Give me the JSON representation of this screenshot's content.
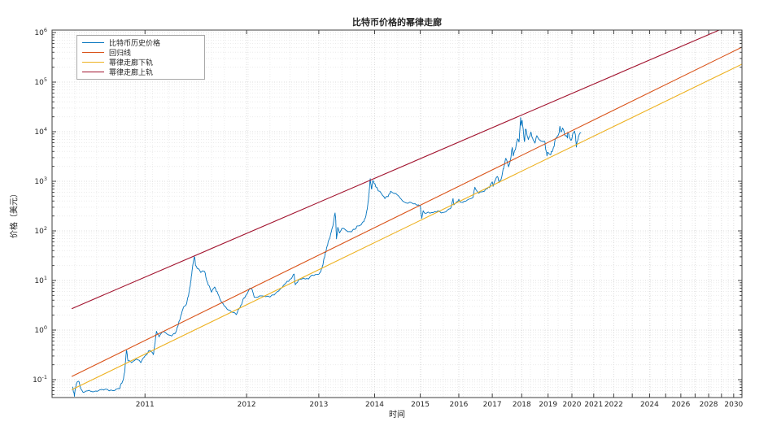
{
  "title": "比特币价格的幂律走廊",
  "axes": {
    "xlabel": "时间",
    "ylabel": "价格（美元）"
  },
  "legend": {
    "position": "top-left",
    "items": [
      {
        "label": "比特币历史价格",
        "color": "#0072BD"
      },
      {
        "label": "回归线",
        "color": "#D95319"
      },
      {
        "label": "幂律走廊下轨",
        "color": "#EDB120"
      },
      {
        "label": "幂律走廊上轨",
        "color": "#A2142F"
      }
    ]
  },
  "chart_data": {
    "type": "line",
    "title": "比特币价格的幂律走廊",
    "xlabel": "时间",
    "ylabel": "价格（美元）",
    "x_scale": "log10 of days since 2009-01-03",
    "y_scale": "log10",
    "x_range_days": [
      502,
      7926
    ],
    "y_range_usd": [
      0.0436,
      1120000
    ],
    "grid": "major and minor dotted gridlines, both axes",
    "legend_position": "top-left",
    "x_ticks": [
      {
        "year": 2011,
        "days": 728,
        "labeled": true
      },
      {
        "year": 2012,
        "days": 1093,
        "labeled": true
      },
      {
        "year": 2013,
        "days": 1459,
        "labeled": true
      },
      {
        "year": 2014,
        "days": 1824,
        "labeled": true
      },
      {
        "year": 2015,
        "days": 2189,
        "labeled": true
      },
      {
        "year": 2016,
        "days": 2554,
        "labeled": true
      },
      {
        "year": 2017,
        "days": 2920,
        "labeled": true
      },
      {
        "year": 2018,
        "days": 3285,
        "labeled": true
      },
      {
        "year": 2019,
        "days": 3650,
        "labeled": true
      },
      {
        "year": 2020,
        "days": 4015,
        "labeled": true
      },
      {
        "year": 2021,
        "days": 4381,
        "labeled": true
      },
      {
        "year": 2022,
        "days": 4746,
        "labeled": true
      },
      {
        "year": 2023,
        "days": 5111,
        "labeled": false
      },
      {
        "year": 2024,
        "days": 5477,
        "labeled": true
      },
      {
        "year": 2025,
        "days": 5842,
        "labeled": false
      },
      {
        "year": 2026,
        "days": 6207,
        "labeled": true
      },
      {
        "year": 2027,
        "days": 6572,
        "labeled": false
      },
      {
        "year": 2028,
        "days": 6938,
        "labeled": true
      },
      {
        "year": 2029,
        "days": 7303,
        "labeled": false
      },
      {
        "year": 2030,
        "days": 7668,
        "labeled": true
      }
    ],
    "y_tick_exponents": [
      -1,
      0,
      1,
      2,
      3,
      4,
      5,
      6
    ],
    "series": [
      {
        "name": "比特币历史价格",
        "color": "#0072BD",
        "kind": "price_history",
        "points_days_usd": [
          [
            545,
            0.072
          ],
          [
            549,
            0.046
          ],
          [
            553,
            0.081
          ],
          [
            558,
            0.093
          ],
          [
            563,
            0.066
          ],
          [
            571,
            0.056
          ],
          [
            582,
            0.061
          ],
          [
            597,
            0.059
          ],
          [
            617,
            0.062
          ],
          [
            640,
            0.06
          ],
          [
            658,
            0.066
          ],
          [
            666,
            0.095
          ],
          [
            671,
            0.14
          ],
          [
            676,
            0.39
          ],
          [
            680,
            0.24
          ],
          [
            690,
            0.22
          ],
          [
            703,
            0.26
          ],
          [
            716,
            0.22
          ],
          [
            728,
            0.3
          ],
          [
            742,
            0.39
          ],
          [
            753,
            0.32
          ],
          [
            762,
            0.95
          ],
          [
            770,
            0.73
          ],
          [
            781,
            0.92
          ],
          [
            795,
            0.83
          ],
          [
            810,
            0.76
          ],
          [
            822,
            0.86
          ],
          [
            836,
            1.55
          ],
          [
            849,
            2.9
          ],
          [
            860,
            3.4
          ],
          [
            872,
            7.5
          ],
          [
            880,
            17.5
          ],
          [
            887,
            30
          ],
          [
            891,
            20
          ],
          [
            897,
            17.5
          ],
          [
            910,
            14.5
          ],
          [
            922,
            15.5
          ],
          [
            935,
            9.2
          ],
          [
            950,
            5.8
          ],
          [
            962,
            7.4
          ],
          [
            978,
            4.9
          ],
          [
            995,
            3.4
          ],
          [
            1012,
            2.6
          ],
          [
            1030,
            2.3
          ],
          [
            1049,
            2.05
          ],
          [
            1065,
            2.9
          ],
          [
            1080,
            4.4
          ],
          [
            1093,
            5.2
          ],
          [
            1112,
            6.9
          ],
          [
            1127,
            4.6
          ],
          [
            1160,
            4.9
          ],
          [
            1190,
            4.85
          ],
          [
            1220,
            5.1
          ],
          [
            1248,
            6.5
          ],
          [
            1278,
            8.8
          ],
          [
            1308,
            11
          ],
          [
            1322,
            13.5
          ],
          [
            1328,
            8.2
          ],
          [
            1345,
            10.3
          ],
          [
            1372,
            11.2
          ],
          [
            1400,
            10.7
          ],
          [
            1430,
            12.6
          ],
          [
            1459,
            13.4
          ],
          [
            1475,
            17
          ],
          [
            1492,
            29
          ],
          [
            1505,
            45
          ],
          [
            1518,
            65
          ],
          [
            1532,
            92
          ],
          [
            1546,
            140
          ],
          [
            1557,
            230
          ],
          [
            1561,
            165
          ],
          [
            1566,
            69
          ],
          [
            1574,
            118
          ],
          [
            1585,
            91
          ],
          [
            1600,
            112
          ],
          [
            1625,
            104
          ],
          [
            1650,
            97
          ],
          [
            1675,
            108
          ],
          [
            1700,
            126
          ],
          [
            1728,
            133
          ],
          [
            1748,
            155
          ],
          [
            1762,
            205
          ],
          [
            1775,
            340
          ],
          [
            1784,
            580
          ],
          [
            1792,
            1130
          ],
          [
            1798,
            840
          ],
          [
            1803,
            700
          ],
          [
            1810,
            1020
          ],
          [
            1820,
            900
          ],
          [
            1832,
            770
          ],
          [
            1850,
            640
          ],
          [
            1875,
            560
          ],
          [
            1900,
            450
          ],
          [
            1925,
            490
          ],
          [
            1945,
            630
          ],
          [
            1960,
            590
          ],
          [
            1985,
            570
          ],
          [
            2010,
            500
          ],
          [
            2040,
            400
          ],
          [
            2070,
            365
          ],
          [
            2100,
            380
          ],
          [
            2130,
            350
          ],
          [
            2160,
            330
          ],
          [
            2189,
            315
          ],
          [
            2202,
            178
          ],
          [
            2215,
            255
          ],
          [
            2235,
            225
          ],
          [
            2260,
            240
          ],
          [
            2290,
            235
          ],
          [
            2320,
            245
          ],
          [
            2350,
            255
          ],
          [
            2380,
            230
          ],
          [
            2410,
            237
          ],
          [
            2440,
            262
          ],
          [
            2470,
            280
          ],
          [
            2496,
            450
          ],
          [
            2505,
            335
          ],
          [
            2523,
            365
          ],
          [
            2554,
            432
          ],
          [
            2580,
            378
          ],
          [
            2610,
            395
          ],
          [
            2640,
            415
          ],
          [
            2675,
            445
          ],
          [
            2700,
            465
          ],
          [
            2723,
            760
          ],
          [
            2740,
            660
          ],
          [
            2767,
            575
          ],
          [
            2800,
            610
          ],
          [
            2830,
            630
          ],
          [
            2860,
            700
          ],
          [
            2889,
            745
          ],
          [
            2920,
            975
          ],
          [
            2930,
            790
          ],
          [
            2955,
            1050
          ],
          [
            2979,
            1250
          ],
          [
            3003,
            950
          ],
          [
            3030,
            1180
          ],
          [
            3055,
            1800
          ],
          [
            3081,
            2900
          ],
          [
            3100,
            2450
          ],
          [
            3116,
            1950
          ],
          [
            3140,
            2750
          ],
          [
            3163,
            4800
          ],
          [
            3176,
            3250
          ],
          [
            3200,
            4300
          ],
          [
            3231,
            7200
          ],
          [
            3250,
            6200
          ],
          [
            3270,
            19200
          ],
          [
            3275,
            13500
          ],
          [
            3283,
            15800
          ],
          [
            3290,
            17000
          ],
          [
            3305,
            11000
          ],
          [
            3321,
            6300
          ],
          [
            3335,
            11300
          ],
          [
            3355,
            8500
          ],
          [
            3373,
            6900
          ],
          [
            3395,
            8200
          ],
          [
            3409,
            9800
          ],
          [
            3430,
            7500
          ],
          [
            3450,
            6450
          ],
          [
            3464,
            5900
          ],
          [
            3478,
            7500
          ],
          [
            3490,
            8300
          ],
          [
            3520,
            7000
          ],
          [
            3550,
            6450
          ],
          [
            3575,
            6350
          ],
          [
            3602,
            6350
          ],
          [
            3615,
            4450
          ],
          [
            3633,
            3250
          ],
          [
            3648,
            3850
          ],
          [
            3665,
            3550
          ],
          [
            3688,
            3420
          ],
          [
            3710,
            3950
          ],
          [
            3740,
            5050
          ],
          [
            3762,
            7150
          ],
          [
            3785,
            8000
          ],
          [
            3805,
            8650
          ],
          [
            3826,
            12900
          ],
          [
            3835,
            10800
          ],
          [
            3847,
            9800
          ],
          [
            3867,
            11900
          ],
          [
            3890,
            10200
          ],
          [
            3910,
            8250
          ],
          [
            3930,
            8300
          ],
          [
            3945,
            7450
          ],
          [
            3948,
            9550
          ],
          [
            3965,
            9150
          ],
          [
            3985,
            7250
          ],
          [
            4001,
            6650
          ],
          [
            4015,
            7250
          ],
          [
            4035,
            9350
          ],
          [
            4058,
            10300
          ],
          [
            4075,
            7900
          ],
          [
            4087,
            4900
          ],
          [
            4098,
            6250
          ],
          [
            4115,
            6900
          ],
          [
            4135,
            8800
          ],
          [
            4152,
            9550
          ],
          [
            4166,
            9450
          ]
        ]
      },
      {
        "name": "回归线",
        "color": "#D95319",
        "kind": "straight_powerlaw",
        "points_days_usd": [
          [
            543,
            0.116
          ],
          [
            7926,
            507000
          ]
        ]
      },
      {
        "name": "幂律走廊下轨",
        "color": "#EDB120",
        "kind": "straight_powerlaw",
        "points_days_usd": [
          [
            543,
            0.0627
          ],
          [
            7926,
            230000
          ]
        ]
      },
      {
        "name": "幂律走廊上轨",
        "color": "#A2142F",
        "kind": "straight_powerlaw",
        "points_days_usd": [
          [
            543,
            2.7
          ],
          [
            7926,
            1766000
          ]
        ]
      }
    ]
  }
}
